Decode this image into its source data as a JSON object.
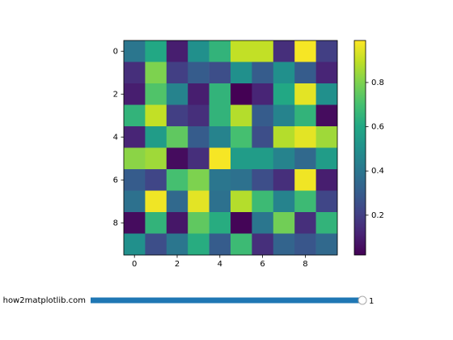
{
  "chart_data": {
    "type": "heatmap",
    "colormap": "viridis",
    "values": [
      [
        0.4,
        0.6,
        0.1,
        0.5,
        0.65,
        0.9,
        0.9,
        0.15,
        0.98,
        0.2
      ],
      [
        0.15,
        0.8,
        0.2,
        0.3,
        0.25,
        0.5,
        0.3,
        0.5,
        0.3,
        0.12
      ],
      [
        0.1,
        0.72,
        0.45,
        0.1,
        0.65,
        0.02,
        0.12,
        0.6,
        0.95,
        0.5
      ],
      [
        0.65,
        0.9,
        0.2,
        0.15,
        0.65,
        0.88,
        0.3,
        0.45,
        0.65,
        0.05
      ],
      [
        0.12,
        0.55,
        0.75,
        0.3,
        0.45,
        0.7,
        0.25,
        0.88,
        0.95,
        0.85
      ],
      [
        0.82,
        0.85,
        0.05,
        0.15,
        0.98,
        0.55,
        0.55,
        0.45,
        0.35,
        0.55
      ],
      [
        0.3,
        0.22,
        0.7,
        0.8,
        0.4,
        0.38,
        0.25,
        0.15,
        0.97,
        0.1
      ],
      [
        0.38,
        0.97,
        0.35,
        0.95,
        0.38,
        0.88,
        0.68,
        0.45,
        0.68,
        0.22
      ],
      [
        0.05,
        0.65,
        0.08,
        0.75,
        0.62,
        0.03,
        0.4,
        0.78,
        0.15,
        0.65
      ],
      [
        0.5,
        0.25,
        0.4,
        0.62,
        0.3,
        0.68,
        0.15,
        0.33,
        0.28,
        0.35
      ]
    ],
    "xlim": [
      -0.5,
      9.5
    ],
    "ylim": [
      9.5,
      -0.5
    ],
    "xticks": [
      0,
      2,
      4,
      6,
      8
    ],
    "yticks": [
      0,
      2,
      4,
      6,
      8
    ],
    "clim": [
      0.02,
      0.99
    ],
    "colorbar_ticks": [
      0.2,
      0.4,
      0.6,
      0.8
    ]
  },
  "slider": {
    "label": "- how2matplotlib.com",
    "value": 1
  }
}
